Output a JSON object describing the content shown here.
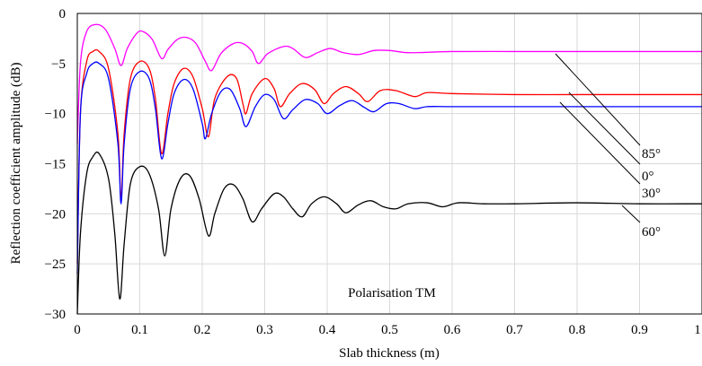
{
  "chart_data": {
    "type": "line",
    "xlabel": "Slab thickness (m)",
    "ylabel": "Reflection coefficient amplitude (dB)",
    "xlim": [
      0,
      1
    ],
    "ylim": [
      -30,
      0
    ],
    "grid": true,
    "x_ticks": [
      "0",
      "0.1",
      "0.2",
      "0.3",
      "0.4",
      "0.5",
      "0.6",
      "0.7",
      "0.8",
      "0.9",
      "1"
    ],
    "y_ticks": [
      "0",
      "−5",
      "−10",
      "−15",
      "−20",
      "−25",
      "−30"
    ],
    "annotation": "Polarisation TM",
    "series": [
      {
        "name": "85°",
        "color": "#ff00ff",
        "points": [
          [
            0,
            -13
          ],
          [
            0.005,
            -5
          ],
          [
            0.015,
            -1.8
          ],
          [
            0.03,
            -1.1
          ],
          [
            0.045,
            -1.6
          ],
          [
            0.06,
            -3.5
          ],
          [
            0.07,
            -5.2
          ],
          [
            0.08,
            -3.5
          ],
          [
            0.095,
            -2
          ],
          [
            0.105,
            -1.8
          ],
          [
            0.12,
            -2.6
          ],
          [
            0.135,
            -4.5
          ],
          [
            0.145,
            -3.6
          ],
          [
            0.16,
            -2.6
          ],
          [
            0.175,
            -2.4
          ],
          [
            0.19,
            -3
          ],
          [
            0.205,
            -4.8
          ],
          [
            0.215,
            -5.7
          ],
          [
            0.23,
            -4
          ],
          [
            0.25,
            -3
          ],
          [
            0.265,
            -3
          ],
          [
            0.28,
            -3.8
          ],
          [
            0.29,
            -5
          ],
          [
            0.305,
            -4
          ],
          [
            0.33,
            -3.3
          ],
          [
            0.345,
            -3.5
          ],
          [
            0.365,
            -4.4
          ],
          [
            0.385,
            -3.9
          ],
          [
            0.405,
            -3.5
          ],
          [
            0.425,
            -3.9
          ],
          [
            0.45,
            -4.1
          ],
          [
            0.475,
            -3.7
          ],
          [
            0.5,
            -3.7
          ],
          [
            0.525,
            -3.9
          ],
          [
            0.55,
            -3.9
          ],
          [
            0.6,
            -3.8
          ],
          [
            0.7,
            -3.8
          ],
          [
            0.8,
            -3.8
          ],
          [
            0.9,
            -3.8
          ],
          [
            1,
            -3.8
          ]
        ]
      },
      {
        "name": "0°",
        "color": "#ff0000",
        "points": [
          [
            0,
            -25
          ],
          [
            0.005,
            -10
          ],
          [
            0.015,
            -4.8
          ],
          [
            0.025,
            -3.8
          ],
          [
            0.035,
            -3.8
          ],
          [
            0.05,
            -5.5
          ],
          [
            0.065,
            -12
          ],
          [
            0.07,
            -18.5
          ],
          [
            0.075,
            -12
          ],
          [
            0.085,
            -6.5
          ],
          [
            0.1,
            -4.8
          ],
          [
            0.115,
            -5.5
          ],
          [
            0.125,
            -8.5
          ],
          [
            0.135,
            -14
          ],
          [
            0.145,
            -10
          ],
          [
            0.155,
            -7
          ],
          [
            0.17,
            -5.5
          ],
          [
            0.185,
            -6.3
          ],
          [
            0.2,
            -9.5
          ],
          [
            0.21,
            -12.3
          ],
          [
            0.22,
            -8.5
          ],
          [
            0.24,
            -6.3
          ],
          [
            0.255,
            -6.5
          ],
          [
            0.265,
            -9
          ],
          [
            0.27,
            -10
          ],
          [
            0.28,
            -8
          ],
          [
            0.3,
            -6.5
          ],
          [
            0.315,
            -7.5
          ],
          [
            0.325,
            -9.3
          ],
          [
            0.34,
            -8
          ],
          [
            0.36,
            -7
          ],
          [
            0.38,
            -7.6
          ],
          [
            0.395,
            -9
          ],
          [
            0.41,
            -8
          ],
          [
            0.43,
            -7.3
          ],
          [
            0.45,
            -8
          ],
          [
            0.465,
            -8.8
          ],
          [
            0.485,
            -7.7
          ],
          [
            0.51,
            -7.7
          ],
          [
            0.54,
            -8.3
          ],
          [
            0.56,
            -7.9
          ],
          [
            0.6,
            -8
          ],
          [
            0.7,
            -8.1
          ],
          [
            0.8,
            -8.1
          ],
          [
            0.9,
            -8.1
          ],
          [
            1,
            -8.1
          ]
        ]
      },
      {
        "name": "30°",
        "color": "#0000ff",
        "points": [
          [
            0,
            -26
          ],
          [
            0.005,
            -10
          ],
          [
            0.015,
            -6
          ],
          [
            0.025,
            -5
          ],
          [
            0.035,
            -5
          ],
          [
            0.05,
            -6.5
          ],
          [
            0.065,
            -13
          ],
          [
            0.07,
            -19
          ],
          [
            0.075,
            -13
          ],
          [
            0.085,
            -7.5
          ],
          [
            0.1,
            -5.8
          ],
          [
            0.115,
            -6.5
          ],
          [
            0.125,
            -9.5
          ],
          [
            0.135,
            -14.5
          ],
          [
            0.145,
            -11
          ],
          [
            0.155,
            -8
          ],
          [
            0.17,
            -6.6
          ],
          [
            0.185,
            -7.5
          ],
          [
            0.2,
            -11
          ],
          [
            0.205,
            -12.5
          ],
          [
            0.215,
            -10
          ],
          [
            0.23,
            -7.8
          ],
          [
            0.245,
            -7.6
          ],
          [
            0.26,
            -9.5
          ],
          [
            0.27,
            -11.3
          ],
          [
            0.285,
            -9.3
          ],
          [
            0.3,
            -8.1
          ],
          [
            0.315,
            -8.6
          ],
          [
            0.33,
            -10.5
          ],
          [
            0.345,
            -9.6
          ],
          [
            0.365,
            -8.6
          ],
          [
            0.385,
            -9
          ],
          [
            0.4,
            -10
          ],
          [
            0.42,
            -9.2
          ],
          [
            0.44,
            -8.7
          ],
          [
            0.46,
            -9.4
          ],
          [
            0.475,
            -9.8
          ],
          [
            0.495,
            -9
          ],
          [
            0.515,
            -9
          ],
          [
            0.54,
            -9.5
          ],
          [
            0.56,
            -9.3
          ],
          [
            0.6,
            -9.3
          ],
          [
            0.7,
            -9.3
          ],
          [
            0.8,
            -9.3
          ],
          [
            0.9,
            -9.3
          ],
          [
            1,
            -9.3
          ]
        ]
      },
      {
        "name": "60°",
        "color": "#000000",
        "points": [
          [
            0,
            -30
          ],
          [
            0.005,
            -22
          ],
          [
            0.015,
            -16
          ],
          [
            0.025,
            -14.3
          ],
          [
            0.035,
            -14
          ],
          [
            0.05,
            -16.5
          ],
          [
            0.06,
            -22
          ],
          [
            0.068,
            -28.5
          ],
          [
            0.075,
            -23
          ],
          [
            0.085,
            -17
          ],
          [
            0.1,
            -15.3
          ],
          [
            0.115,
            -16
          ],
          [
            0.13,
            -19.5
          ],
          [
            0.14,
            -24.2
          ],
          [
            0.15,
            -19.5
          ],
          [
            0.165,
            -16.5
          ],
          [
            0.18,
            -16.2
          ],
          [
            0.195,
            -18.5
          ],
          [
            0.21,
            -22.2
          ],
          [
            0.22,
            -20
          ],
          [
            0.235,
            -17.5
          ],
          [
            0.25,
            -17.1
          ],
          [
            0.265,
            -18.5
          ],
          [
            0.28,
            -20.8
          ],
          [
            0.295,
            -19.5
          ],
          [
            0.315,
            -18
          ],
          [
            0.33,
            -18.3
          ],
          [
            0.345,
            -19.5
          ],
          [
            0.36,
            -20.3
          ],
          [
            0.375,
            -19
          ],
          [
            0.395,
            -18.3
          ],
          [
            0.415,
            -19
          ],
          [
            0.43,
            -19.9
          ],
          [
            0.45,
            -19.1
          ],
          [
            0.47,
            -18.7
          ],
          [
            0.49,
            -19.3
          ],
          [
            0.51,
            -19.5
          ],
          [
            0.53,
            -19
          ],
          [
            0.56,
            -18.9
          ],
          [
            0.585,
            -19.3
          ],
          [
            0.61,
            -18.9
          ],
          [
            0.65,
            -19
          ],
          [
            0.7,
            -19
          ],
          [
            0.8,
            -18.9
          ],
          [
            0.9,
            -19
          ],
          [
            1,
            -19
          ]
        ]
      }
    ]
  }
}
